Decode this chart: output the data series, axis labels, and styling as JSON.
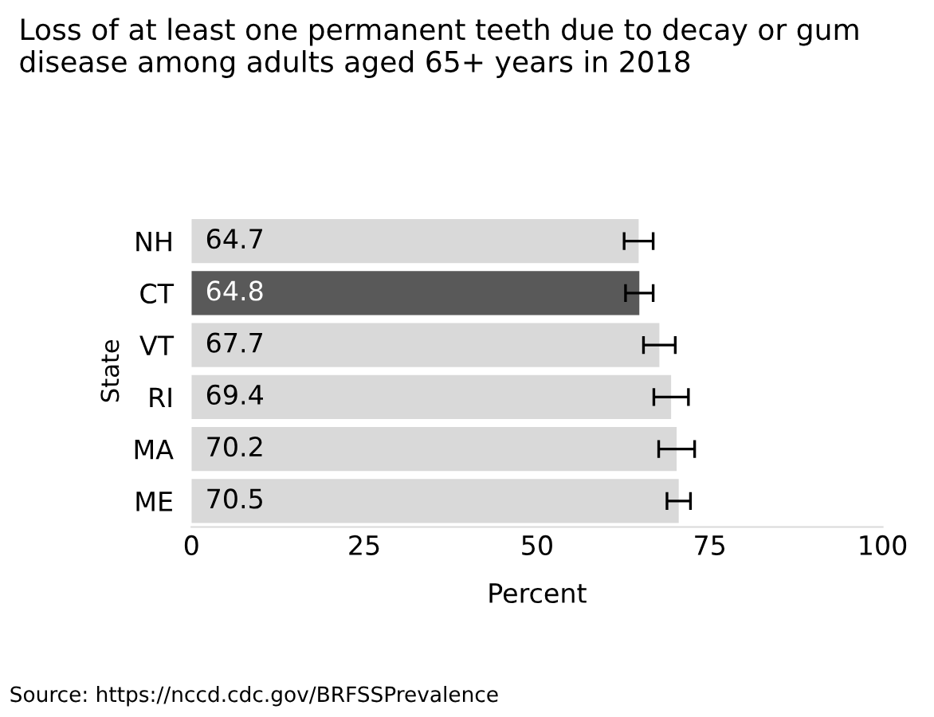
{
  "chart_data": {
    "type": "bar",
    "orientation": "horizontal",
    "title": "Loss of at least one permanent teeth due to decay or gum disease among adults aged 65+ years in 2018",
    "xlabel": "Percent",
    "ylabel": "State",
    "categories": [
      "NH",
      "CT",
      "VT",
      "RI",
      "MA",
      "ME"
    ],
    "values": [
      64.7,
      64.8,
      67.7,
      69.4,
      70.2,
      70.5
    ],
    "colors": [
      "#d9d9d9",
      "#595959",
      "#d9d9d9",
      "#d9d9d9",
      "#d9d9d9",
      "#d9d9d9"
    ],
    "errors": [
      2.1,
      2.0,
      2.3,
      2.5,
      2.6,
      1.7
    ],
    "xlim": [
      0,
      100
    ],
    "xticks": [
      0,
      25,
      50,
      75,
      100
    ],
    "grid": false,
    "data_labels": true,
    "annotations": [
      "Source: https://nccd.cdc.gov/BRFSSPrevalence"
    ]
  }
}
